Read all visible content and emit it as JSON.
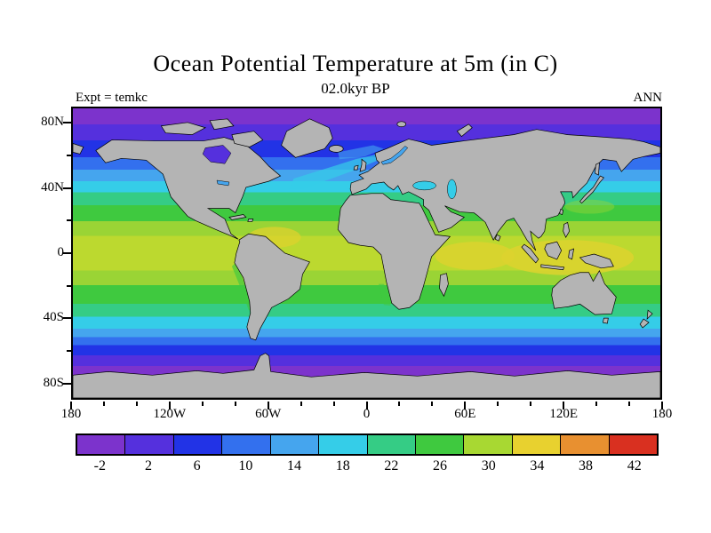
{
  "title": "Ocean Potential Temperature at 5m (in C)",
  "subtitle": "02.0kyr BP",
  "expt_label": "Expt = temkc",
  "season_label": "ANN",
  "axes": {
    "lat_ticks": [
      "80N",
      "40N",
      "0",
      "40S",
      "80S"
    ],
    "lon_ticks": [
      "180",
      "120W",
      "60W",
      "0",
      "60E",
      "120E",
      "180"
    ]
  },
  "colorbar": {
    "labels": [
      "-2",
      "2",
      "6",
      "10",
      "14",
      "18",
      "22",
      "26",
      "30",
      "34",
      "38",
      "42"
    ],
    "colors": [
      "#7c33cc",
      "#5530dd",
      "#2233e6",
      "#3370ee",
      "#45a5ee",
      "#35cde8",
      "#35cc85",
      "#3fc93f",
      "#a8d832",
      "#e8d12f",
      "#e89030",
      "#d93020"
    ]
  },
  "land_color": "#b4b4b4",
  "chart_data": {
    "type": "heatmap",
    "title": "Ocean Potential Temperature at 5m (in C)",
    "subtitle": "02.0kyr BP",
    "experiment": "temkc",
    "season": "ANN",
    "variable": "ocean potential temperature",
    "depth": "5m",
    "units": "C",
    "projection": "global cylindrical equidistant (equirectangular)",
    "lon_range": [
      -180,
      180
    ],
    "lat_range": [
      -90,
      90
    ],
    "lon_tick_labels": [
      "180",
      "120W",
      "60W",
      "0",
      "60E",
      "120E",
      "180"
    ],
    "lat_tick_labels": [
      "80N",
      "40N",
      "0",
      "40S",
      "80S"
    ],
    "contour_levels": [
      -2,
      2,
      6,
      10,
      14,
      18,
      22,
      26,
      30,
      34,
      38,
      42
    ],
    "level_colors": [
      "#7c33cc",
      "#5530dd",
      "#2233e6",
      "#3370ee",
      "#45a5ee",
      "#35cde8",
      "#35cc85",
      "#3fc93f",
      "#a8d832",
      "#e8d12f",
      "#e89030",
      "#d93020"
    ],
    "land_color": "#b4b4b4",
    "legend_position": "bottom",
    "grid": false,
    "zonal_mean_estimate": [
      {
        "lat": 85,
        "temp_c": -1
      },
      {
        "lat": 75,
        "temp_c": 0
      },
      {
        "lat": 65,
        "temp_c": 3
      },
      {
        "lat": 55,
        "temp_c": 7
      },
      {
        "lat": 45,
        "temp_c": 12
      },
      {
        "lat": 35,
        "temp_c": 18
      },
      {
        "lat": 25,
        "temp_c": 23
      },
      {
        "lat": 15,
        "temp_c": 26
      },
      {
        "lat": 0,
        "temp_c": 28
      },
      {
        "lat": -15,
        "temp_c": 26
      },
      {
        "lat": -25,
        "temp_c": 22
      },
      {
        "lat": -35,
        "temp_c": 16
      },
      {
        "lat": -45,
        "temp_c": 9
      },
      {
        "lat": -55,
        "temp_c": 4
      },
      {
        "lat": -65,
        "temp_c": -1
      },
      {
        "lat": -75,
        "temp_c": -2
      }
    ],
    "notable_features": [
      "warm pool near 30 C (yellow) in western tropical Pacific, eastern Indian Ocean and Caribbean",
      "warm tongue extending northeast across North Atlantic toward Norway",
      "cool upwelling tongues along west coasts of South America and southern Africa",
      "sub-zero purple band surrounding Antarctica and across Arctic Ocean"
    ]
  }
}
